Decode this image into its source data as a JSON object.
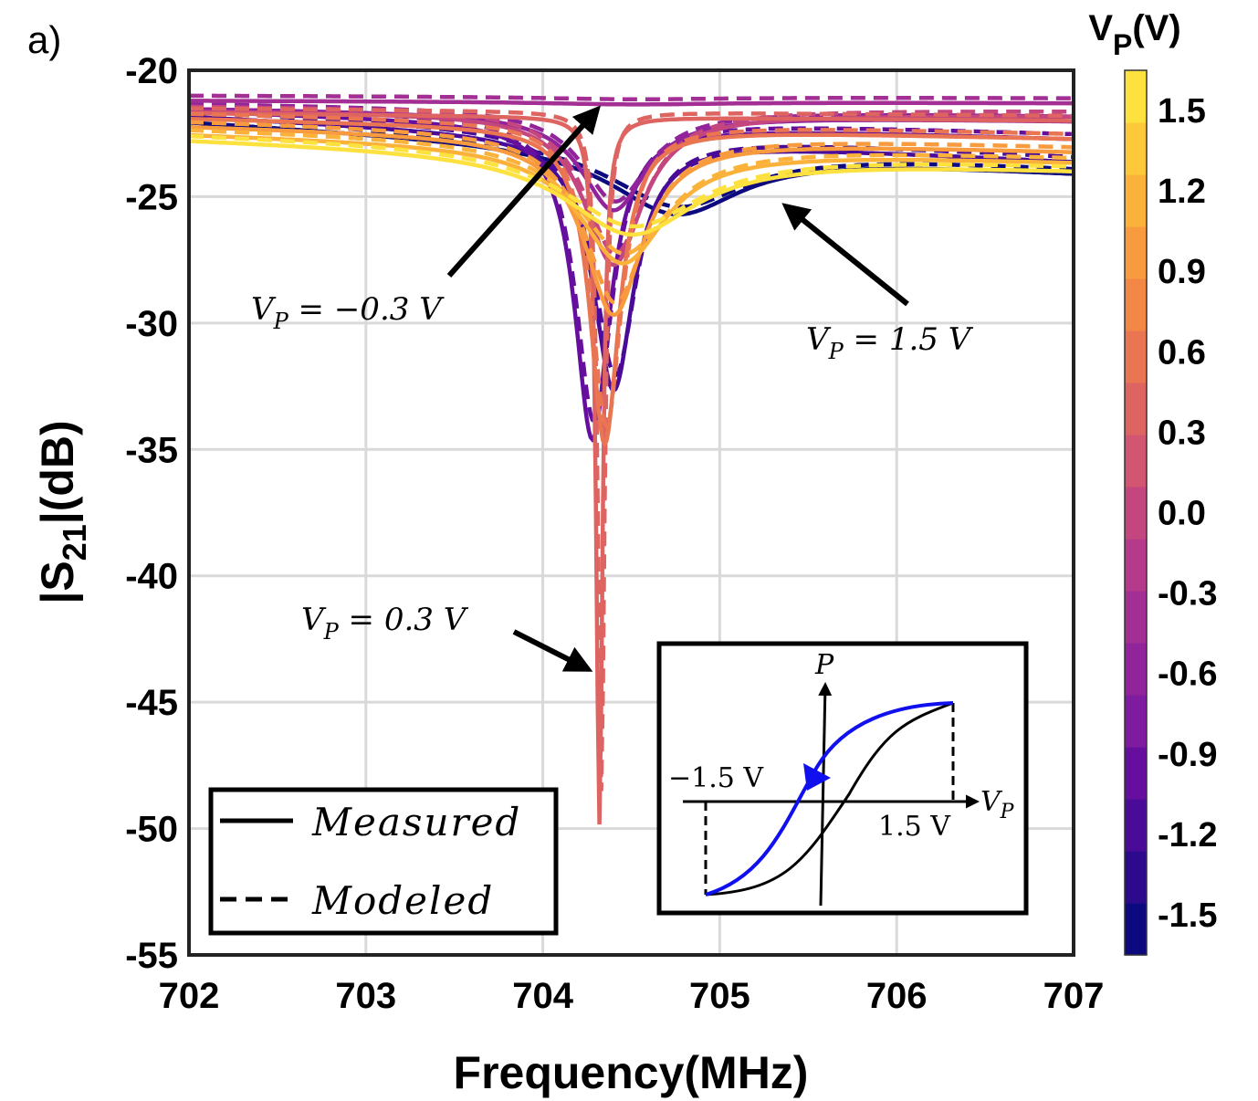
{
  "panel_label": "a)",
  "chart_data": {
    "type": "line",
    "xlabel": "Frequency(MHz)",
    "ylabel_main": "|S",
    "ylabel_sub": "21",
    "ylabel_tail": "|(dB)",
    "xlim": [
      702,
      707
    ],
    "ylim": [
      -55,
      -20
    ],
    "xticks": [
      "702",
      "703",
      "704",
      "705",
      "706",
      "707"
    ],
    "xtick_values": [
      702,
      703,
      704,
      705,
      706,
      707
    ],
    "yticks": [
      "-20",
      "-25",
      "-30",
      "-35",
      "-40",
      "-45",
      "-50",
      "-55"
    ],
    "ytick_values": [
      -20,
      -25,
      -30,
      -35,
      -40,
      -45,
      -50,
      -55
    ],
    "grid": true,
    "colorbar": {
      "title_main": "V",
      "title_sub": "P",
      "title_tail": "(V)",
      "range": [
        -1.65,
        1.65
      ],
      "ticks": [
        "1.5",
        "1.2",
        "0.9",
        "0.6",
        "0.3",
        "0.0",
        "-0.3",
        "-0.6",
        "-0.9",
        "-1.2",
        "-1.5"
      ],
      "tick_values": [
        1.5,
        1.2,
        0.9,
        0.6,
        0.3,
        0.0,
        -0.3,
        -0.6,
        -0.9,
        -1.2,
        -1.5
      ],
      "colors": [
        "#0c0a7e",
        "#2d0a8c",
        "#4a0c98",
        "#660f9e",
        "#7e1b9f",
        "#92249b",
        "#a42f94",
        "#b53a8b",
        "#c4467f",
        "#d25571",
        "#de6461",
        "#e97552",
        "#f28746",
        "#f79b3e",
        "#fbb23b",
        "#fdc93a",
        "#fde13f"
      ]
    },
    "series": [
      {
        "name": "-1.5 V",
        "vp": -1.5,
        "f0": 704.75,
        "depth": 2.6,
        "width": 0.45,
        "base_start": -22.0,
        "base_end": -24.0
      },
      {
        "name": "-1.2 V",
        "vp": -1.2,
        "f0": 704.4,
        "depth": 10.0,
        "width": 0.14,
        "base_start": -21.8,
        "base_end": -23.6
      },
      {
        "name": "-0.9 V",
        "vp": -0.9,
        "f0": 704.28,
        "depth": 12.5,
        "width": 0.12,
        "base_start": -21.6,
        "base_end": -22.7
      },
      {
        "name": "-0.6 V",
        "vp": -0.6,
        "f0": 704.4,
        "depth": 3.8,
        "width": 0.22,
        "base_start": -21.5,
        "base_end": -22.0
      },
      {
        "name": "-0.3 V",
        "vp": -0.3,
        "f0": 704.5,
        "depth": 0.1,
        "width": 0.6,
        "base_start": -21.2,
        "base_end": -21.3
      },
      {
        "name": "0.0 V",
        "vp": 0.0,
        "f0": 704.4,
        "depth": 6.0,
        "width": 0.2,
        "base_start": -21.6,
        "base_end": -21.8
      },
      {
        "name": "0.3 V",
        "vp": 0.3,
        "f0": 704.32,
        "depth": 28.0,
        "width": 0.022,
        "base_start": -21.7,
        "base_end": -22.0
      },
      {
        "name": "0.6 V",
        "vp": 0.6,
        "f0": 704.35,
        "depth": 12.5,
        "width": 0.1,
        "base_start": -21.9,
        "base_end": -22.7
      },
      {
        "name": "0.9 V",
        "vp": 0.9,
        "f0": 704.4,
        "depth": 7.0,
        "width": 0.2,
        "base_start": -22.2,
        "base_end": -23.2
      },
      {
        "name": "1.2 V",
        "vp": 1.2,
        "f0": 704.45,
        "depth": 4.6,
        "width": 0.3,
        "base_start": -22.5,
        "base_end": -23.6
      },
      {
        "name": "1.5 V",
        "vp": 1.5,
        "f0": 704.5,
        "depth": 3.2,
        "width": 0.45,
        "base_start": -22.7,
        "base_end": -23.9
      }
    ],
    "annotations": [
      {
        "label": "V",
        "sub": "P",
        "rest": " = −0.3 V"
      },
      {
        "label": "V",
        "sub": "P",
        "rest": " = 1.5 V"
      },
      {
        "label": "V",
        "sub": "P",
        "rest": " = 0.3 V"
      }
    ],
    "legend": {
      "placement": "bottom-left",
      "items": [
        {
          "label": "Measured",
          "style": "solid"
        },
        {
          "label": "Modeled",
          "style": "dashed"
        }
      ]
    },
    "inset": {
      "placement": "bottom-right",
      "y_axis_label": "P",
      "x_axis_label": "V",
      "x_axis_sub": "P",
      "left_label": "−1.5 V",
      "right_label": "1.5 V",
      "colors": {
        "up_branch": "#000000",
        "down_branch": "#1010ee"
      }
    }
  }
}
